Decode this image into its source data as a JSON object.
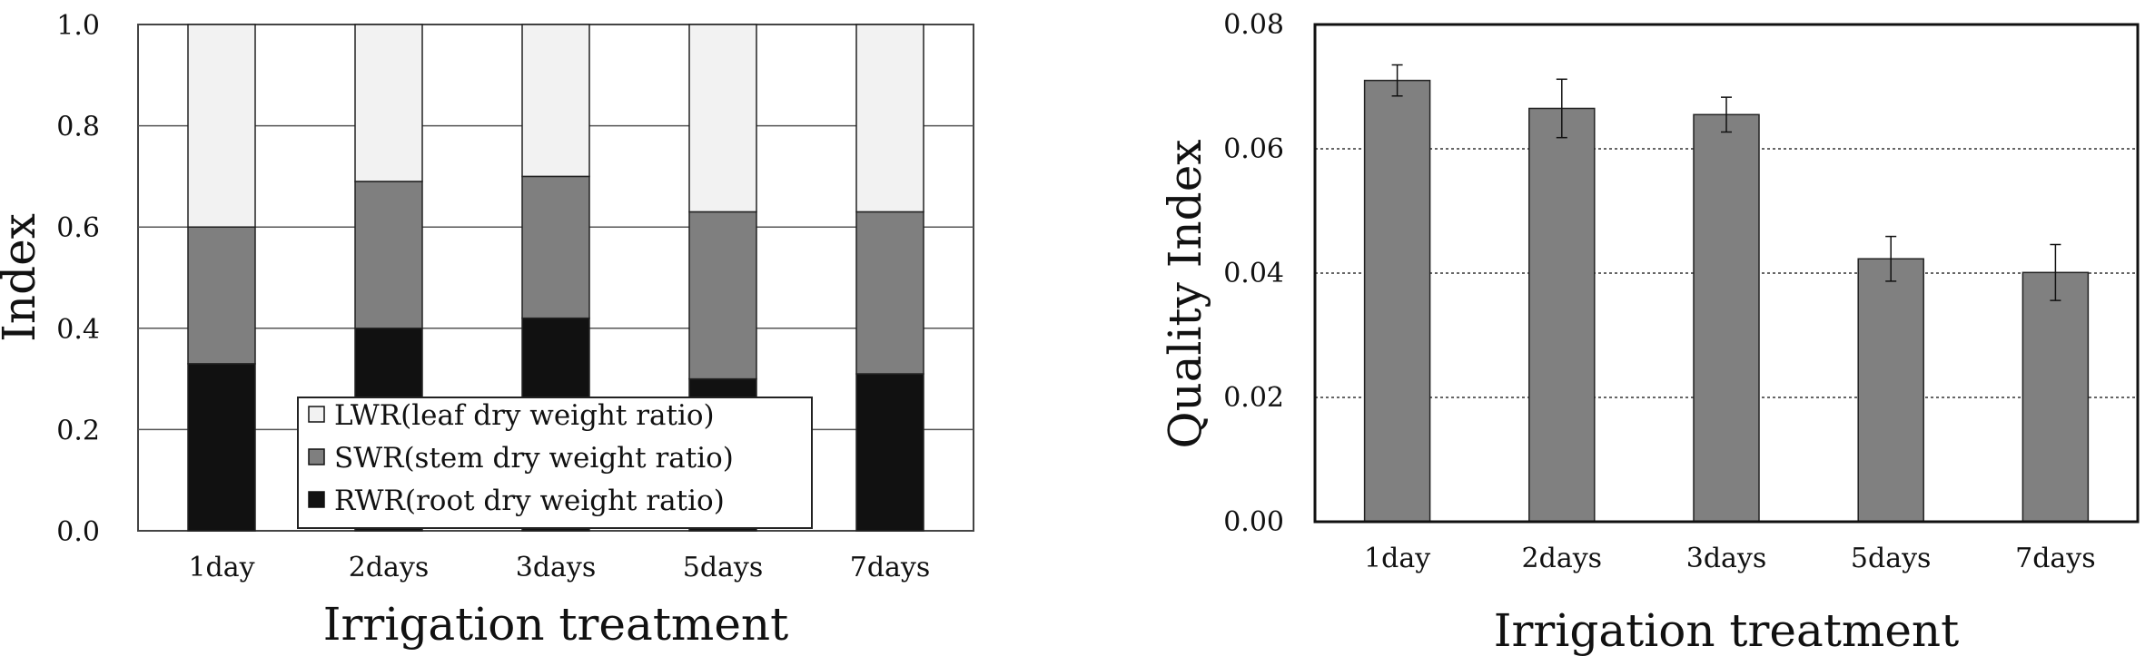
{
  "chart_data": [
    {
      "type": "bar",
      "stacked": true,
      "categories": [
        "1day",
        "2days",
        "3days",
        "5days",
        "7days"
      ],
      "series": [
        {
          "name": "RWR(root dry weight ratio)",
          "values": [
            0.33,
            0.4,
            0.42,
            0.3,
            0.31
          ],
          "color": "#111111"
        },
        {
          "name": "SWR(stem dry weight ratio)",
          "values": [
            0.27,
            0.29,
            0.28,
            0.33,
            0.32
          ],
          "color": "#7f7f7f"
        },
        {
          "name": "LWR(leaf dry weight ratio)",
          "values": [
            0.4,
            0.31,
            0.3,
            0.37,
            0.37
          ],
          "color": "#f2f2f2"
        }
      ],
      "legend_order": [
        2,
        1,
        0
      ],
      "xlabel": "Irrigation treatment",
      "ylabel": "Index",
      "ylim": [
        0,
        1.0
      ],
      "yticks": [
        "0.0",
        "0.2",
        "0.4",
        "0.6",
        "0.8",
        "1.0"
      ],
      "grid": true,
      "legend_position": "bottom-center"
    },
    {
      "type": "bar",
      "categories": [
        "1day",
        "2days",
        "3days",
        "5days",
        "7days"
      ],
      "values": [
        0.071,
        0.0665,
        0.0655,
        0.0423,
        0.0401
      ],
      "errors": [
        0.0025,
        0.0047,
        0.0028,
        0.0036,
        0.0045
      ],
      "color": "#808080",
      "xlabel": "Irrigation treatment",
      "ylabel": "Quality Index",
      "ylim": [
        0,
        0.08
      ],
      "yticks": [
        "0.00",
        "0.02",
        "0.04",
        "0.06",
        "0.08"
      ],
      "grid": true,
      "grid_style": "dotted"
    }
  ]
}
